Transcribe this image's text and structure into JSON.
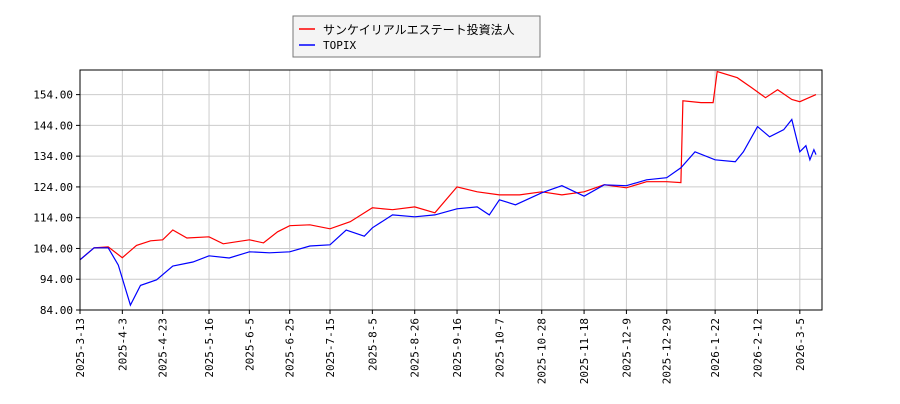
{
  "chart_data": {
    "type": "line",
    "title": "",
    "xlabel": "",
    "ylabel": "",
    "xlim": [
      "2025-03-13",
      "2026-03-16"
    ],
    "ylim": [
      84,
      162
    ],
    "grid": true,
    "legend_placement": "top-center",
    "y_ticks": [
      "84.00",
      "94.00",
      "104.00",
      "114.00",
      "124.00",
      "134.00",
      "144.00",
      "154.00"
    ],
    "x_ticks": [
      "2025-3-13",
      "2025-4-3",
      "2025-4-23",
      "2025-5-16",
      "2025-6-5",
      "2025-6-25",
      "2025-7-15",
      "2025-8-5",
      "2025-8-26",
      "2025-9-16",
      "2025-10-7",
      "2025-10-28",
      "2025-11-18",
      "2025-12-9",
      "2025-12-29",
      "2026-1-22",
      "2026-2-12",
      "2026-3-5"
    ],
    "series": [
      {
        "name": "サンケイリアルエステート投資法人",
        "color": "#ff0000",
        "points": [
          [
            "2025-03-13",
            100.3
          ],
          [
            "2025-03-20",
            104.2
          ],
          [
            "2025-03-27",
            104.5
          ],
          [
            "2025-04-03",
            101
          ],
          [
            "2025-04-10",
            105
          ],
          [
            "2025-04-17",
            106.5
          ],
          [
            "2025-04-23",
            106.8
          ],
          [
            "2025-04-28",
            110
          ],
          [
            "2025-05-05",
            107.4
          ],
          [
            "2025-05-16",
            107.8
          ],
          [
            "2025-05-23",
            105.5
          ],
          [
            "2025-06-05",
            106.8
          ],
          [
            "2025-06-12",
            105.8
          ],
          [
            "2025-06-19",
            109.4
          ],
          [
            "2025-06-25",
            111.4
          ],
          [
            "2025-07-05",
            111.7
          ],
          [
            "2025-07-15",
            110.4
          ],
          [
            "2025-07-25",
            112.7
          ],
          [
            "2025-08-05",
            117.2
          ],
          [
            "2025-08-15",
            116.6
          ],
          [
            "2025-08-26",
            117.5
          ],
          [
            "2025-09-05",
            115.6
          ],
          [
            "2025-09-16",
            124
          ],
          [
            "2025-09-26",
            122.4
          ],
          [
            "2025-10-07",
            121.4
          ],
          [
            "2025-10-17",
            121.4
          ],
          [
            "2025-10-28",
            122.4
          ],
          [
            "2025-11-07",
            121.4
          ],
          [
            "2025-11-18",
            122.4
          ],
          [
            "2025-11-28",
            124.7
          ],
          [
            "2025-12-09",
            123.7
          ],
          [
            "2025-12-19",
            125.7
          ],
          [
            "2025-12-29",
            125.7
          ],
          [
            "2026-01-05",
            125.4
          ],
          [
            "2026-01-06",
            152
          ],
          [
            "2026-01-15",
            151.4
          ],
          [
            "2026-01-21",
            151.4
          ],
          [
            "2026-01-23",
            161.5
          ],
          [
            "2026-02-02",
            159.5
          ],
          [
            "2026-02-09",
            156.3
          ],
          [
            "2026-02-16",
            153
          ],
          [
            "2026-02-22",
            155.6
          ],
          [
            "2026-03-01",
            152.4
          ],
          [
            "2026-03-05",
            151.7
          ],
          [
            "2026-03-13",
            154
          ]
        ]
      },
      {
        "name": "TOPIX",
        "color": "#0000ff",
        "points": [
          [
            "2025-03-13",
            100.3
          ],
          [
            "2025-03-20",
            104.2
          ],
          [
            "2025-03-27",
            104.2
          ],
          [
            "2025-04-01",
            98.6
          ],
          [
            "2025-04-07",
            85.6
          ],
          [
            "2025-04-12",
            92
          ],
          [
            "2025-04-20",
            93.8
          ],
          [
            "2025-04-28",
            98.3
          ],
          [
            "2025-05-08",
            99.6
          ],
          [
            "2025-05-16",
            101.6
          ],
          [
            "2025-05-26",
            100.9
          ],
          [
            "2025-06-05",
            102.9
          ],
          [
            "2025-06-15",
            102.6
          ],
          [
            "2025-06-25",
            102.9
          ],
          [
            "2025-07-05",
            104.8
          ],
          [
            "2025-07-15",
            105.2
          ],
          [
            "2025-07-23",
            110
          ],
          [
            "2025-08-01",
            108
          ],
          [
            "2025-08-05",
            110.7
          ],
          [
            "2025-08-15",
            114.9
          ],
          [
            "2025-08-26",
            114.3
          ],
          [
            "2025-09-05",
            114.9
          ],
          [
            "2025-09-16",
            116.9
          ],
          [
            "2025-09-26",
            117.5
          ],
          [
            "2025-10-02",
            114.9
          ],
          [
            "2025-10-07",
            119.8
          ],
          [
            "2025-10-15",
            118.2
          ],
          [
            "2025-10-28",
            122.1
          ],
          [
            "2025-11-07",
            124.4
          ],
          [
            "2025-11-18",
            121
          ],
          [
            "2025-11-28",
            124.7
          ],
          [
            "2025-12-09",
            124.4
          ],
          [
            "2025-12-19",
            126.3
          ],
          [
            "2025-12-29",
            127
          ],
          [
            "2026-01-05",
            130.2
          ],
          [
            "2026-01-12",
            135.4
          ],
          [
            "2026-01-22",
            132.8
          ],
          [
            "2026-02-01",
            132.2
          ],
          [
            "2026-02-05",
            135.4
          ],
          [
            "2026-02-12",
            143.6
          ],
          [
            "2026-02-18",
            140.3
          ],
          [
            "2026-02-25",
            142.6
          ],
          [
            "2026-03-01",
            145.9
          ],
          [
            "2026-03-05",
            135.4
          ],
          [
            "2026-03-08",
            137.4
          ],
          [
            "2026-03-10",
            132.8
          ],
          [
            "2026-03-12",
            136.1
          ],
          [
            "2026-03-13",
            134.5
          ]
        ]
      }
    ]
  }
}
